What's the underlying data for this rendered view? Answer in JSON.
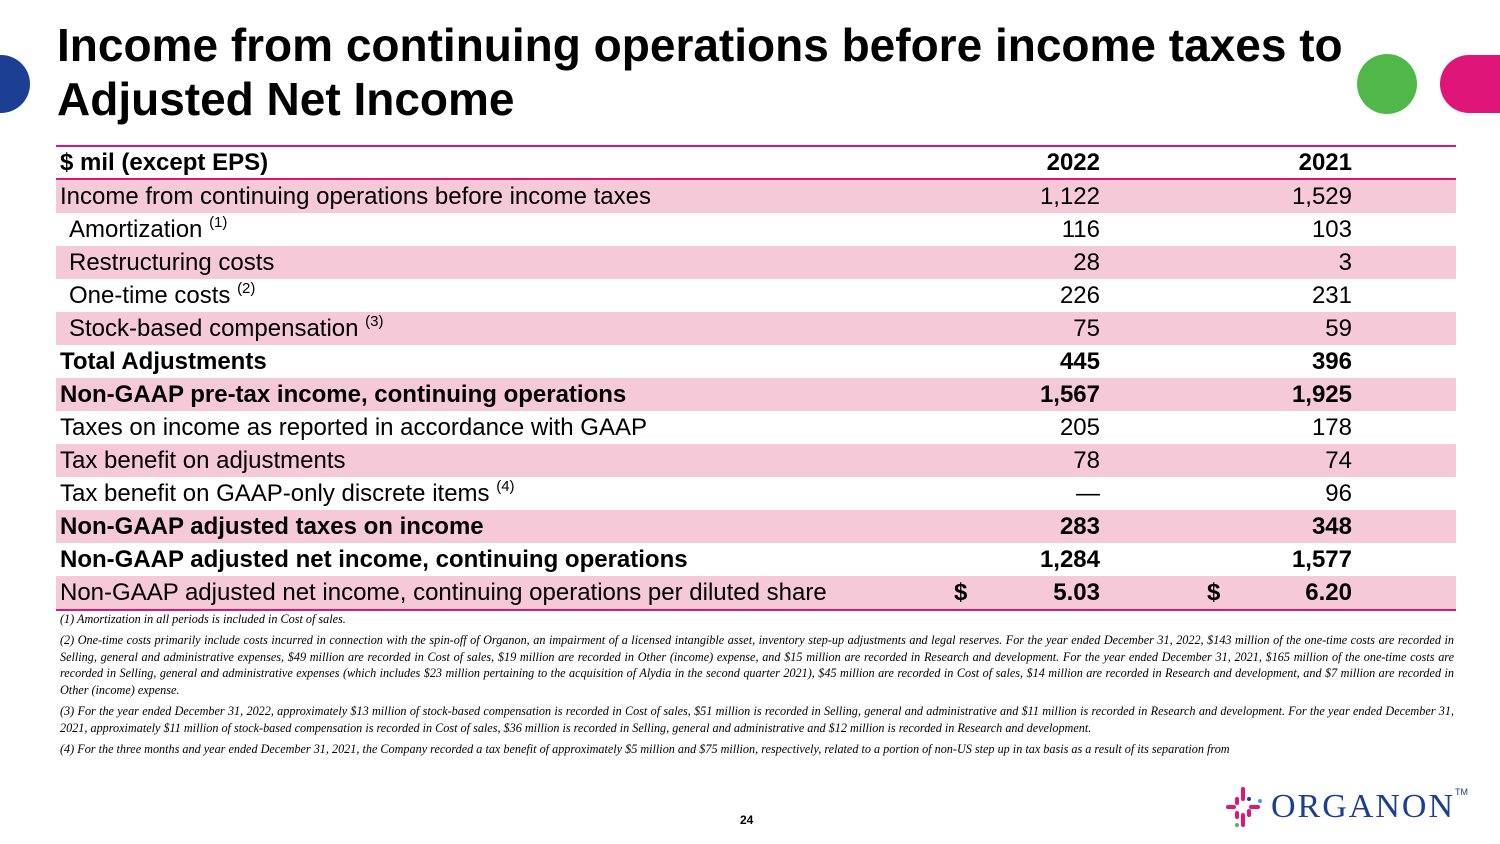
{
  "title": "Income from continuing operations before income taxes to Adjusted Net Income",
  "table": {
    "header": {
      "label": "$ mil (except EPS)",
      "col1": "2022",
      "col2": "2021"
    },
    "rows": [
      {
        "label": "Income from continuing operations before income taxes",
        "sup": "",
        "v1": "1,122",
        "v2": "1,529"
      },
      {
        "label": "Amortization",
        "sup": "(1)",
        "v1": "116",
        "v2": "103"
      },
      {
        "label": "Restructuring costs",
        "sup": "",
        "v1": "28",
        "v2": "3"
      },
      {
        "label": "One-time costs",
        "sup": "(2)",
        "v1": "226",
        "v2": "231"
      },
      {
        "label": "Stock-based compensation",
        "sup": "(3)",
        "v1": "75",
        "v2": "59"
      },
      {
        "label": "Total Adjustments",
        "sup": "",
        "v1": "445",
        "v2": "396"
      },
      {
        "label": "Non-GAAP pre-tax income, continuing operations",
        "sup": "",
        "v1": "1,567",
        "v2": "1,925"
      },
      {
        "label": "Taxes on income as reported in accordance with GAAP",
        "sup": "",
        "v1": "205",
        "v2": "178"
      },
      {
        "label": "Tax benefit on adjustments",
        "sup": "",
        "v1": "78",
        "v2": "74"
      },
      {
        "label": "Tax benefit on GAAP-only discrete items",
        "sup": "(4)",
        "v1": "—",
        "v2": "96"
      },
      {
        "label": "Non-GAAP adjusted taxes on income",
        "sup": "",
        "v1": "283",
        "v2": "348"
      },
      {
        "label": "Non-GAAP adjusted net income, continuing operations",
        "sup": "",
        "v1": "1,284",
        "v2": "1,577"
      },
      {
        "label": "Non-GAAP adjusted net income, continuing operations per diluted share",
        "sup": "",
        "currency": "$",
        "v1": "5.03",
        "v2": "6.20"
      }
    ]
  },
  "footnotes": [
    "(1) Amortization in all periods is included in Cost of sales.",
    "(2) One-time costs primarily include costs incurred in connection with the spin-off of Organon, an impairment of a licensed intangible asset, inventory step-up adjustments and legal reserves. For the year ended December 31, 2022, $143 million of the one-time costs are recorded in Selling, general and administrative expenses, $49 million are recorded in Cost of sales, $19 million are recorded in Other (income) expense, and $15 million are recorded in Research and development. For the year ended December 31, 2021, $165 million of the one-time costs are recorded in Selling, general and administrative expenses (which includes $23 million pertaining to the acquisition of Alydia in the second quarter 2021), $45 million are recorded in Cost of sales, $14 million are recorded in Research and development, and $7 million are recorded in Other (income) expense.",
    "(3) For the year ended December 31, 2022, approximately $13 million of stock-based compensation is recorded in Cost of sales, $51 million is recorded in Selling, general and administrative and $11 million is recorded in Research and development. For the year ended December 31, 2021, approximately $11 million of stock-based compensation is recorded in Cost of sales, $36 million is recorded in Selling, general and administrative and $12 million is recorded in Research and development.",
    "(4) For the three months and year ended December 31, 2021, the Company recorded a tax benefit of approximately $5 million and $75 million, respectively, related to a portion of non-US step up in tax basis as a result of its separation from"
  ],
  "page_number": "24",
  "logo": {
    "text": "ORGANON",
    "tm": "TM"
  },
  "colors": {
    "accent_pink": "#e0157a",
    "row_pink": "#f5c9d8",
    "brand_blue": "#1c3f94",
    "green": "#4fb848"
  }
}
